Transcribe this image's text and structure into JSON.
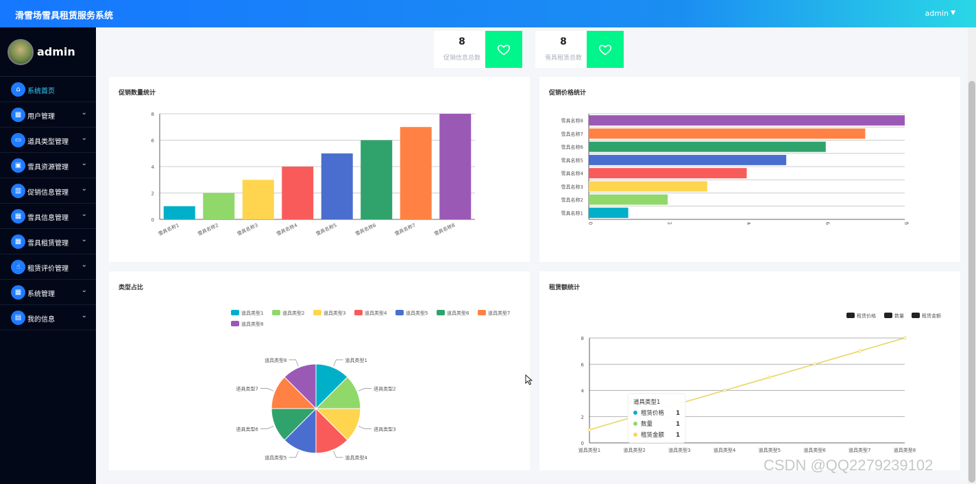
{
  "app": {
    "title": "滑雪场雪具租赁服务系统",
    "user": "admin",
    "caret": "▼"
  },
  "sidebar": {
    "profile_name": "admin",
    "items": [
      {
        "label": "系统首页",
        "icon": "home-icon",
        "glyph": "⌂",
        "arrow": ""
      },
      {
        "label": "用户管理",
        "icon": "grid-icon",
        "glyph": "▦",
        "arrow": "⌄"
      },
      {
        "label": "道具类型管理",
        "icon": "monitor-icon",
        "glyph": "▭",
        "arrow": "⌄"
      },
      {
        "label": "雪具资源管理",
        "icon": "briefcase-icon",
        "glyph": "▣",
        "arrow": "⌄"
      },
      {
        "label": "促销信息管理",
        "icon": "bar-chart-icon",
        "glyph": "▥",
        "arrow": "⌄"
      },
      {
        "label": "雪具信息管理",
        "icon": "grid-icon",
        "glyph": "▦",
        "arrow": "⌄"
      },
      {
        "label": "雪具租赁管理",
        "icon": "grid-icon",
        "glyph": "▦",
        "arrow": "⌄"
      },
      {
        "label": "租赁评价管理",
        "icon": "thumbs-up-icon",
        "glyph": "☝",
        "arrow": "⌄"
      },
      {
        "label": "系统管理",
        "icon": "grid-icon",
        "glyph": "▦",
        "arrow": "⌄"
      },
      {
        "label": "我的信息",
        "icon": "card-icon",
        "glyph": "▤",
        "arrow": "⌄"
      }
    ]
  },
  "stats": [
    {
      "value": "8",
      "label": "促销信息总数",
      "icon": "heart-icon"
    },
    {
      "value": "8",
      "label": "雪具租赁总数",
      "icon": "heart-icon"
    }
  ],
  "colors": [
    "#00b0c8",
    "#91d86b",
    "#ffd54f",
    "#f95b5b",
    "#4a6ecf",
    "#2fa36b",
    "#ff8244",
    "#9b59b6"
  ],
  "watermark": "CSDN @QQ2279239102",
  "chart_data": [
    {
      "type": "bar",
      "title": "促销数量统计",
      "categories": [
        "雪具名称1",
        "雪具名称2",
        "雪具名称3",
        "雪具名称4",
        "雪具名称5",
        "雪具名称6",
        "雪具名称7",
        "雪具名称8"
      ],
      "values": [
        1,
        2,
        3,
        4,
        5,
        6,
        7,
        8
      ],
      "yticks": [
        "0",
        "2",
        "4",
        "6",
        "8"
      ],
      "ylim": [
        0,
        8
      ]
    },
    {
      "type": "bar",
      "orientation": "horizontal",
      "title": "促销价格统计",
      "categories": [
        "雪具名称1",
        "雪具名称2",
        "雪具名称3",
        "雪具名称4",
        "雪具名称5",
        "雪具名称6",
        "雪具名称7",
        "雪具名称8"
      ],
      "values": [
        1,
        2,
        3,
        4,
        5,
        6,
        7,
        8
      ],
      "xticks": [
        "0",
        "2",
        "4",
        "6",
        "8"
      ],
      "xlim": [
        0,
        8
      ]
    },
    {
      "type": "pie",
      "title": "类型占比",
      "labels": [
        "道具类型1",
        "道具类型2",
        "道具类型3",
        "道具类型4",
        "道具类型5",
        "道具类型6",
        "道具类型7",
        "道具类型8"
      ],
      "values": [
        1,
        1,
        1,
        1,
        1,
        1,
        1,
        1
      ]
    },
    {
      "type": "line",
      "title": "租赁额统计",
      "legend": [
        "租赁价格",
        "数量",
        "租赁金额"
      ],
      "categories": [
        "道具类型1",
        "道具类型2",
        "道具类型3",
        "道具类型4",
        "道具类型5",
        "道具类型6",
        "道具类型7",
        "道具类型8"
      ],
      "series": [
        {
          "name": "租赁价格",
          "values": [
            1,
            2,
            3,
            4,
            5,
            6,
            7,
            8
          ]
        },
        {
          "name": "数量",
          "values": [
            1,
            2,
            3,
            4,
            5,
            6,
            7,
            8
          ]
        },
        {
          "name": "租赁金额",
          "values": [
            1,
            2,
            3,
            4,
            5,
            6,
            7,
            8
          ]
        }
      ],
      "yticks": [
        "0",
        "2",
        "4",
        "6",
        "8"
      ],
      "ylim": [
        0,
        8
      ],
      "tooltip": {
        "title": "道具类型1",
        "rows": [
          {
            "name": "租赁价格",
            "value": "1"
          },
          {
            "name": "数量",
            "value": "1"
          },
          {
            "name": "租赁金额",
            "value": "1"
          }
        ]
      }
    }
  ]
}
